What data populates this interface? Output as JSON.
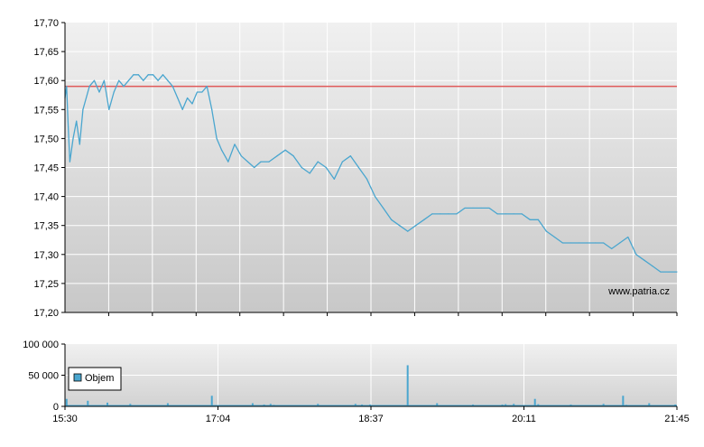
{
  "watermark": "www.patria.cz",
  "chart_data": [
    {
      "type": "line",
      "panel": "price",
      "ylim": [
        17.2,
        17.7
      ],
      "y_ticks": [
        "17,70",
        "17,65",
        "17,60",
        "17,55",
        "17,50",
        "17,45",
        "17,40",
        "17,35",
        "17,30",
        "17,25",
        "17,20"
      ],
      "y_tick_values": [
        17.7,
        17.65,
        17.6,
        17.55,
        17.5,
        17.45,
        17.4,
        17.35,
        17.3,
        17.25,
        17.2
      ],
      "x_time_range": [
        "15:30",
        "21:45"
      ],
      "reference_line": {
        "value": 17.59,
        "color": "#e05a5a"
      },
      "series": [
        {
          "color": "#4aa6cf",
          "x": [
            "15:30",
            "15:31",
            "15:32",
            "15:33",
            "15:35",
            "15:37",
            "15:39",
            "15:41",
            "15:43",
            "15:45",
            "15:48",
            "15:51",
            "15:54",
            "15:57",
            "16:00",
            "16:03",
            "16:06",
            "16:09",
            "16:12",
            "16:15",
            "16:18",
            "16:21",
            "16:24",
            "16:27",
            "16:30",
            "16:33",
            "16:36",
            "16:39",
            "16:42",
            "16:45",
            "16:48",
            "16:51",
            "16:54",
            "16:57",
            "17:00",
            "17:03",
            "17:06",
            "17:10",
            "17:14",
            "17:18",
            "17:22",
            "17:26",
            "17:30",
            "17:35",
            "17:40",
            "17:45",
            "17:50",
            "17:55",
            "18:00",
            "18:05",
            "18:10",
            "18:15",
            "18:20",
            "18:25",
            "18:30",
            "18:35",
            "18:40",
            "18:45",
            "18:50",
            "18:55",
            "19:00",
            "19:05",
            "19:10",
            "19:15",
            "19:20",
            "19:25",
            "19:30",
            "19:35",
            "19:40",
            "19:45",
            "19:50",
            "19:55",
            "20:00",
            "20:05",
            "20:10",
            "20:15",
            "20:20",
            "20:25",
            "20:30",
            "20:35",
            "20:40",
            "20:45",
            "20:50",
            "20:55",
            "21:00",
            "21:05",
            "21:10",
            "21:15",
            "21:20",
            "21:25",
            "21:30",
            "21:35",
            "21:40",
            "21:45"
          ],
          "values": [
            17.57,
            17.59,
            17.52,
            17.46,
            17.5,
            17.53,
            17.49,
            17.55,
            17.57,
            17.59,
            17.6,
            17.58,
            17.6,
            17.55,
            17.58,
            17.6,
            17.59,
            17.6,
            17.61,
            17.61,
            17.6,
            17.61,
            17.61,
            17.6,
            17.61,
            17.6,
            17.59,
            17.57,
            17.55,
            17.57,
            17.56,
            17.58,
            17.58,
            17.59,
            17.55,
            17.5,
            17.48,
            17.46,
            17.49,
            17.47,
            17.46,
            17.45,
            17.46,
            17.46,
            17.47,
            17.48,
            17.47,
            17.45,
            17.44,
            17.46,
            17.45,
            17.43,
            17.46,
            17.47,
            17.45,
            17.43,
            17.4,
            17.38,
            17.36,
            17.35,
            17.34,
            17.35,
            17.36,
            17.37,
            17.37,
            17.37,
            17.37,
            17.38,
            17.38,
            17.38,
            17.38,
            17.37,
            17.37,
            17.37,
            17.37,
            17.36,
            17.36,
            17.34,
            17.33,
            17.32,
            17.32,
            17.32,
            17.32,
            17.32,
            17.32,
            17.31,
            17.32,
            17.33,
            17.3,
            17.29,
            17.28,
            17.27,
            17.27,
            17.27
          ]
        }
      ]
    },
    {
      "type": "bar",
      "panel": "volume",
      "ylim": [
        0,
        100000
      ],
      "y_ticks": [
        "100 000",
        "50 000",
        "0"
      ],
      "y_tick_values": [
        100000,
        50000,
        0
      ],
      "x_ticks": [
        "15:30",
        "17:04",
        "18:37",
        "20:11",
        "21:45"
      ],
      "legend": {
        "label": "Objem",
        "placement": "bottom-left",
        "color": "#4aa6cf"
      },
      "series": [
        {
          "name": "Objem",
          "color": "#4aa6cf",
          "x": [
            "15:31",
            "15:44",
            "15:56",
            "16:10",
            "16:33",
            "17:00",
            "17:25",
            "17:32",
            "17:36",
            "17:38",
            "18:05",
            "18:28",
            "18:32",
            "18:37",
            "18:52",
            "19:00",
            "19:18",
            "19:40",
            "19:58",
            "20:00",
            "20:05",
            "20:18",
            "20:20",
            "20:40",
            "21:00",
            "21:12",
            "21:14",
            "21:28",
            "21:44"
          ],
          "values": [
            12000,
            9000,
            6000,
            4000,
            5000,
            17000,
            5000,
            3000,
            4000,
            2500,
            4000,
            4000,
            3000,
            3000,
            2000,
            66000,
            5000,
            3000,
            3000,
            3500,
            4000,
            12000,
            3500,
            3000,
            4000,
            17000,
            2500,
            5000,
            3000
          ]
        }
      ]
    }
  ]
}
